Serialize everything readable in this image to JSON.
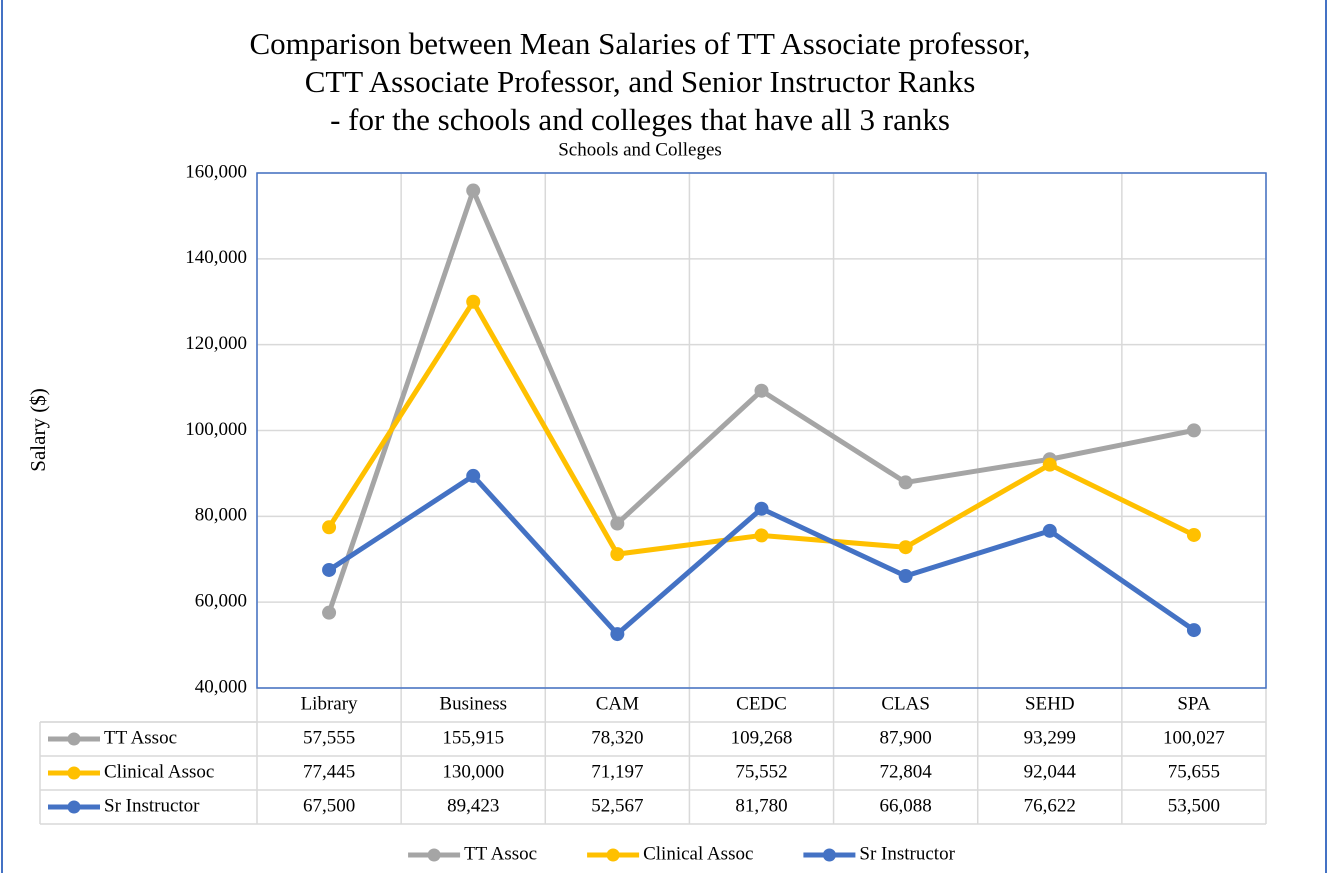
{
  "chart_data": {
    "type": "line",
    "title": "Comparison between Mean Salaries of TT Associate professor, CTT Associate Professor, and Senior Instructor Ranks - for the schools and colleges that have all 3 ranks",
    "subtitle": "Schools and Colleges",
    "y_label": "Salary ($)",
    "categories": [
      "Library",
      "Business",
      "CAM",
      "CEDC",
      "CLAS",
      "SEHD",
      "SPA"
    ],
    "series": [
      {
        "name": "TT Assoc",
        "color": "#a5a5a5",
        "values": [
          57555,
          155915,
          78320,
          109268,
          87900,
          93299,
          100027
        ],
        "value_labels": [
          "57,555",
          "155,915",
          "78,320",
          "109,268",
          "87,900",
          "93,299",
          "100,027"
        ]
      },
      {
        "name": "Clinical Assoc",
        "color": "#ffc000",
        "values": [
          77445,
          130000,
          71197,
          75552,
          72804,
          92044,
          75655
        ],
        "value_labels": [
          "77,445",
          "130,000",
          "71,197",
          "75,552",
          "72,804",
          "92,044",
          "75,655"
        ]
      },
      {
        "name": "Sr Instructor",
        "color": "#4472c4",
        "values": [
          67500,
          89423,
          52567,
          81780,
          66088,
          76622,
          53500
        ],
        "value_labels": [
          "67,500",
          "89,423",
          "52,567",
          "81,780",
          "66,088",
          "76,622",
          "53,500"
        ]
      }
    ],
    "ylim": [
      40000,
      160000
    ],
    "yticks": [
      {
        "value": 40000,
        "label": "40,000"
      },
      {
        "value": 60000,
        "label": "60,000"
      },
      {
        "value": 80000,
        "label": "80,000"
      },
      {
        "value": 100000,
        "label": "100,000"
      },
      {
        "value": 120000,
        "label": "120,000"
      },
      {
        "value": 140000,
        "label": "140,000"
      },
      {
        "value": 160000,
        "label": "160,000"
      }
    ],
    "grid": true,
    "legend": "bottom"
  }
}
